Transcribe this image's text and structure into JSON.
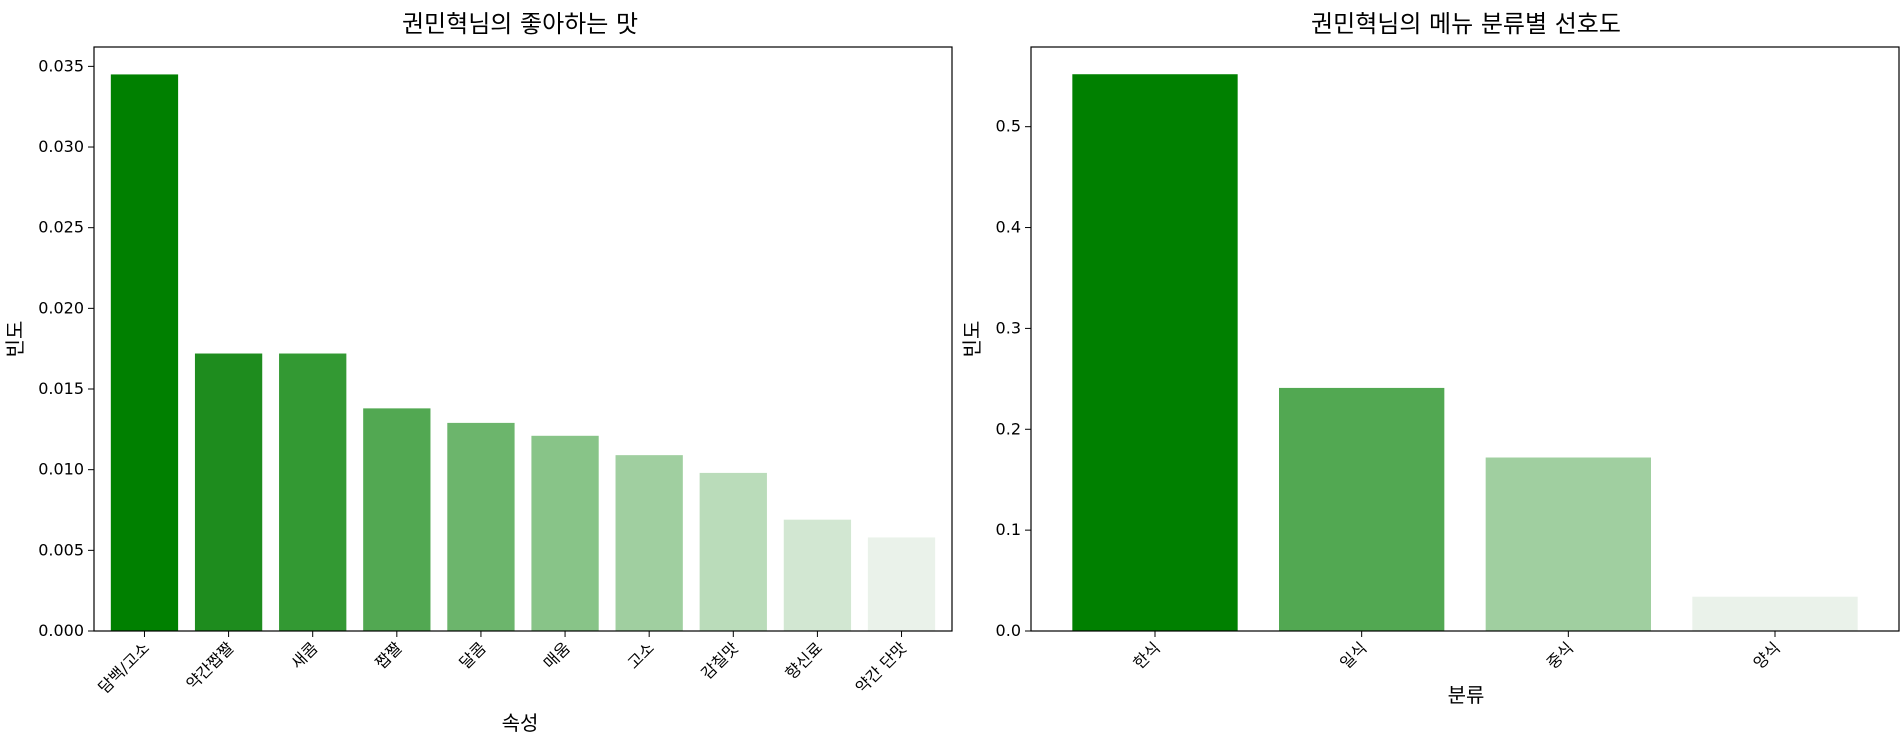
{
  "chart_data": [
    {
      "type": "bar",
      "title": "권민혁님의 좋아하는 맛",
      "xlabel": "속성",
      "ylabel": "빈도",
      "categories": [
        "담백/고소",
        "약간짭짤",
        "새콤",
        "짭짤",
        "달콤",
        "매움",
        "고소",
        "감칠맛",
        "향신료",
        "약간 단맛"
      ],
      "values": [
        0.0345,
        0.0172,
        0.0172,
        0.0138,
        0.0129,
        0.0121,
        0.0109,
        0.0098,
        0.0069,
        0.0058
      ],
      "colors": [
        "#008000",
        "#1e8c1e",
        "#339933",
        "#52a852",
        "#6cb56c",
        "#88c488",
        "#a0cfa0",
        "#badcba",
        "#d2e7d2",
        "#eaf2ea"
      ],
      "ylim": [
        0,
        0.0362
      ],
      "yticks": [
        "0.000",
        "0.005",
        "0.010",
        "0.015",
        "0.020",
        "0.025",
        "0.030",
        "0.035"
      ],
      "ytick_values": [
        0,
        0.005,
        0.01,
        0.015,
        0.02,
        0.025,
        0.03,
        0.035
      ],
      "grid": false,
      "legend": "none"
    },
    {
      "type": "bar",
      "title": "권민혁님의 메뉴 분류별 선호도",
      "xlabel": "분류",
      "ylabel": "빈도",
      "categories": [
        "한식",
        "일식",
        "중식",
        "양식"
      ],
      "values": [
        0.552,
        0.241,
        0.172,
        0.034
      ],
      "colors": [
        "#008000",
        "#52a852",
        "#a0cfa0",
        "#eaf2ea"
      ],
      "ylim": [
        0,
        0.579
      ],
      "yticks": [
        "0.0",
        "0.1",
        "0.2",
        "0.3",
        "0.4",
        "0.5"
      ],
      "ytick_values": [
        0,
        0.1,
        0.2,
        0.3,
        0.4,
        0.5
      ],
      "grid": false,
      "legend": "none"
    }
  ]
}
